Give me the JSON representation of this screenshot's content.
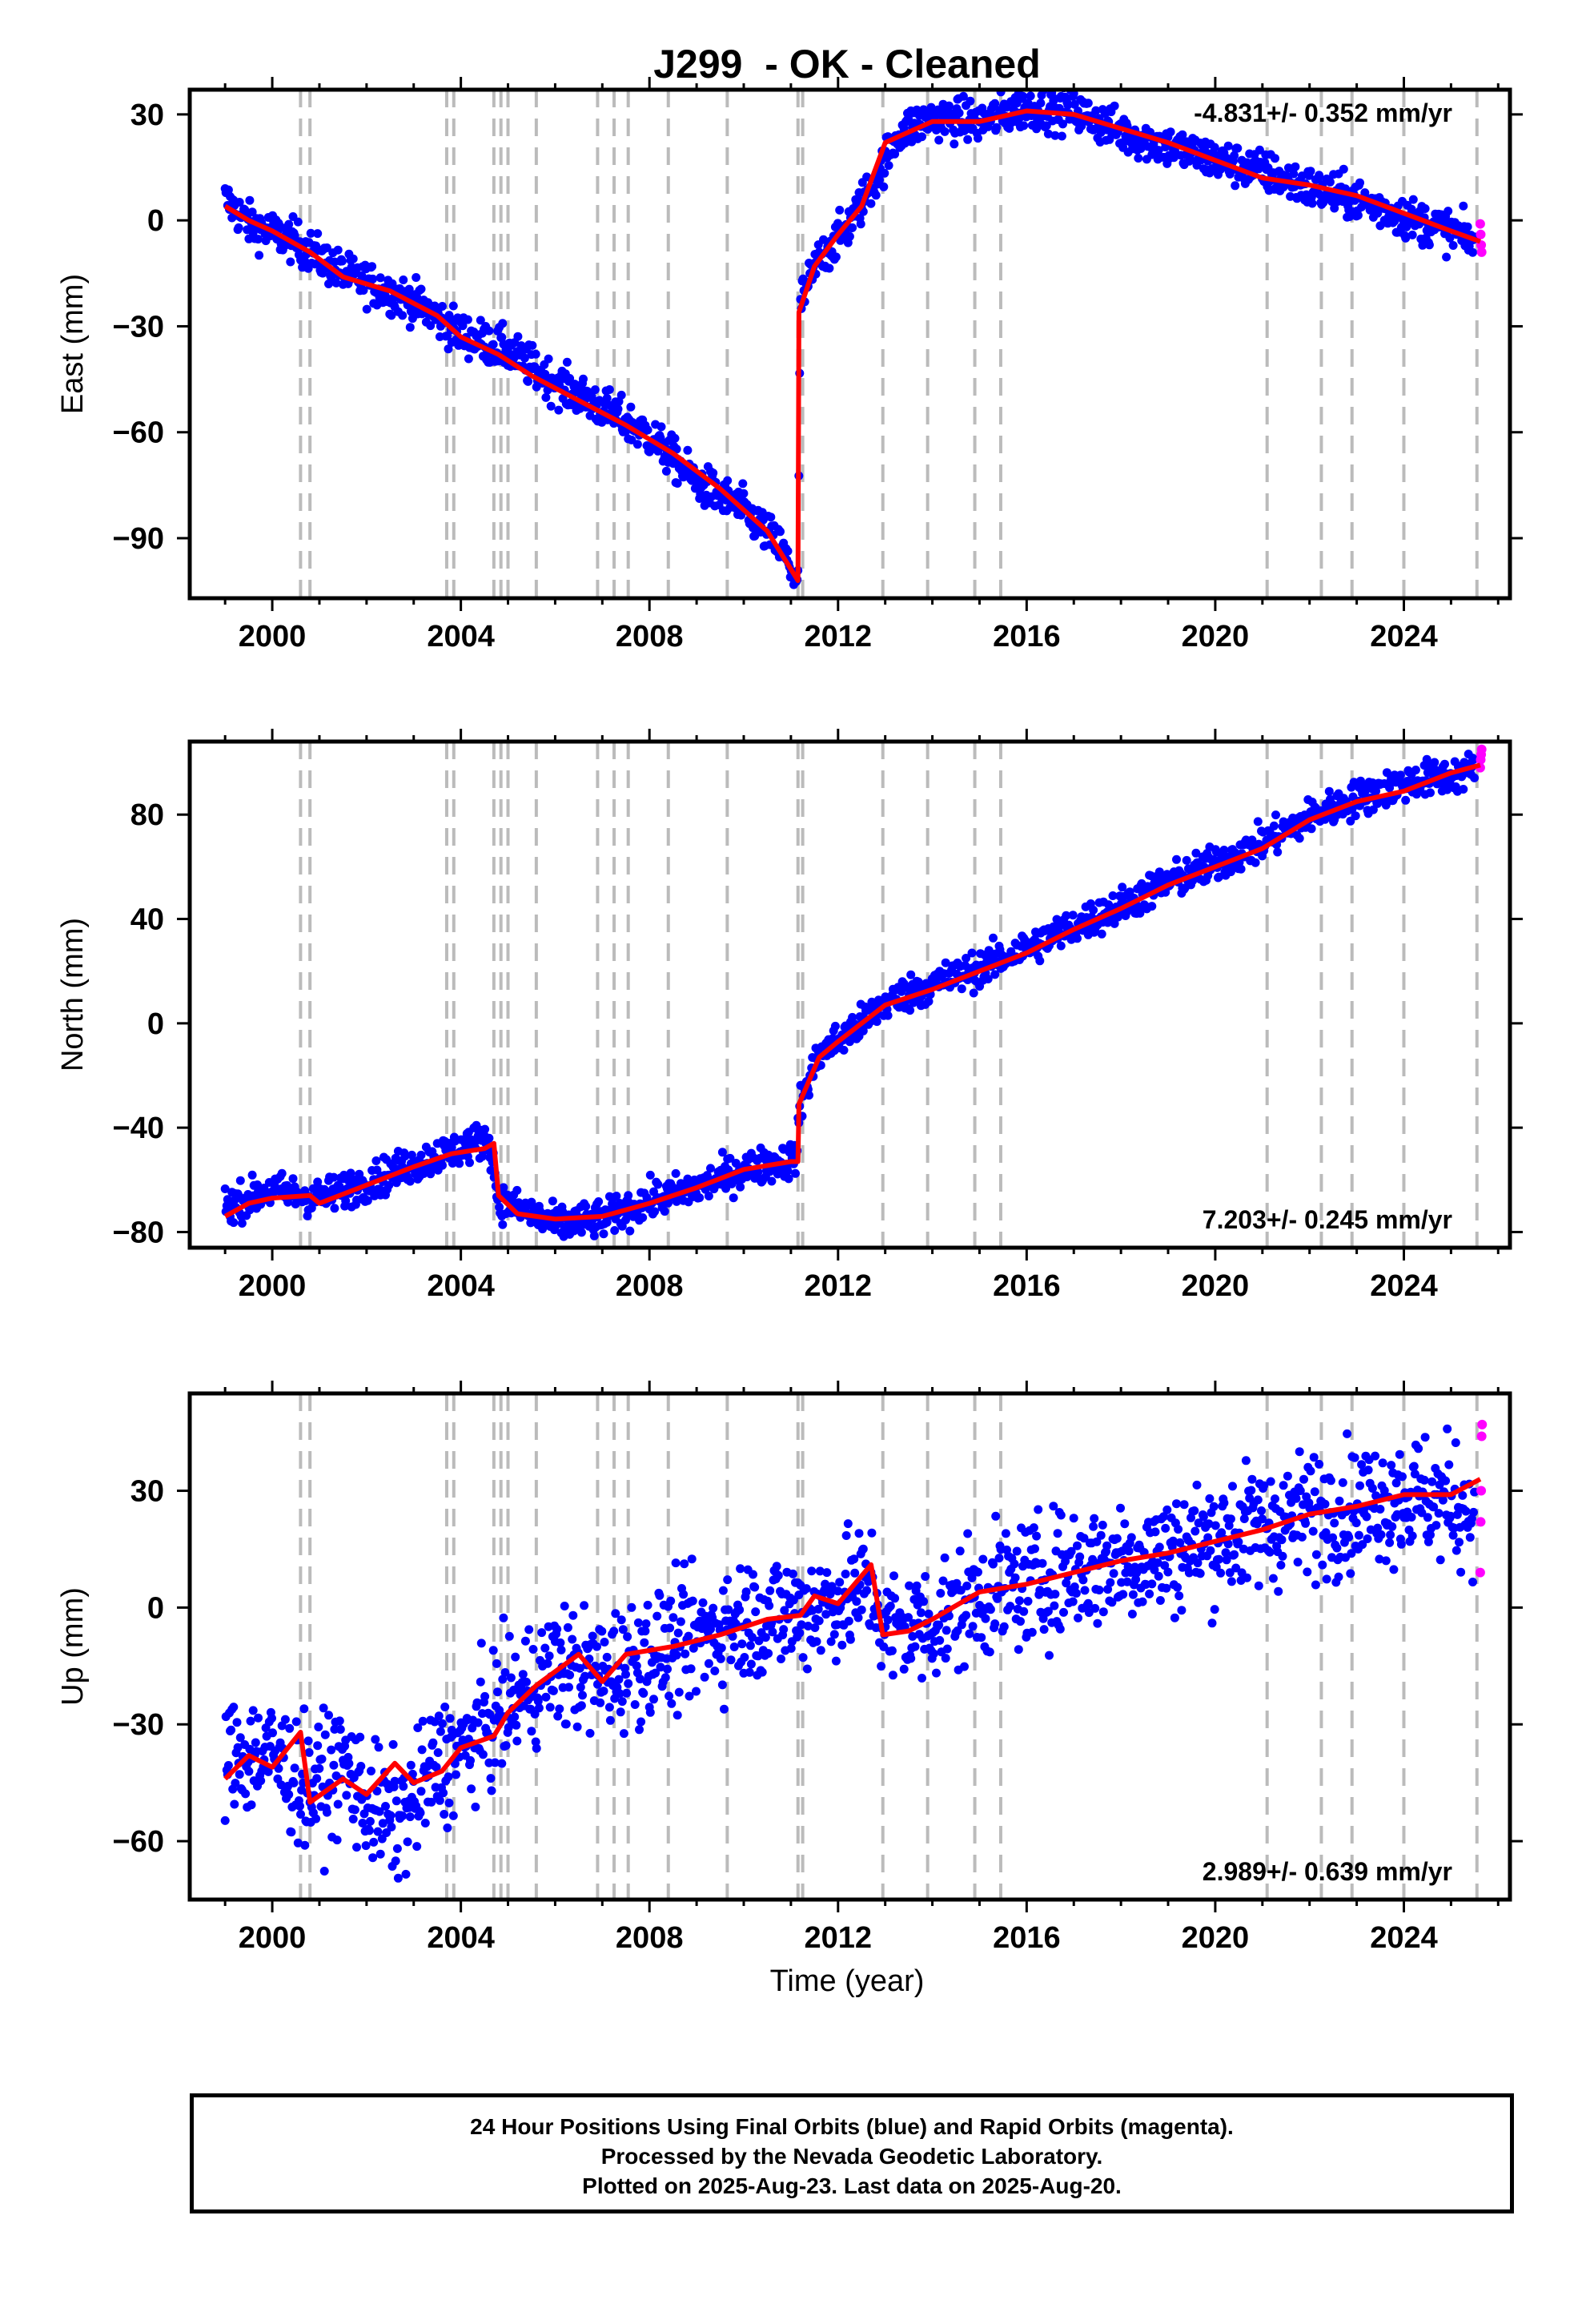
{
  "title": "J299  - OK - Cleaned",
  "xlabel": "Time (year)",
  "footer": {
    "line1": "24 Hour Positions Using Final Orbits (blue) and Rapid Orbits (magenta).",
    "line2": "Processed by the Nevada Geodetic Laboratory.",
    "line3": "Plotted on 2025-Aug-23. Last data on 2025-Aug-20."
  },
  "colors": {
    "final_orbits": "#0000ff",
    "rapid_orbits": "#ff00ff",
    "model": "#ff0000",
    "event_lines": "#bbbbbb"
  },
  "chart_data": [
    {
      "type": "scatter",
      "panel": "east",
      "ylabel": "East (mm)",
      "rate_label": "-4.831+/- 0.352 mm/yr",
      "rate_position": "top-right",
      "xlim": [
        1998.25,
        2026.25
      ],
      "ylim": [
        -107,
        37
      ],
      "xticks": [
        2000,
        2004,
        2008,
        2012,
        2016,
        2020,
        2024
      ],
      "yticks": [
        30,
        0,
        -30,
        -60,
        -90
      ],
      "ytick_labels": [
        "30",
        "0",
        "−30",
        "−60",
        "−90"
      ],
      "events": [
        2000.6,
        2000.8,
        2003.7,
        2003.85,
        2004.7,
        2004.85,
        2005.0,
        2005.6,
        2006.9,
        2007.25,
        2007.55,
        2008.4,
        2009.65,
        2011.15,
        2011.25,
        2012.95,
        2013.9,
        2014.9,
        2015.45,
        2021.1,
        2022.25,
        2022.9,
        2024.0,
        2025.55
      ],
      "model": [
        [
          1999.0,
          4
        ],
        [
          1999.5,
          0
        ],
        [
          2000.0,
          -3
        ],
        [
          2000.8,
          -9
        ],
        [
          2001.5,
          -16
        ],
        [
          2002.5,
          -20
        ],
        [
          2003.5,
          -27
        ],
        [
          2004.0,
          -33
        ],
        [
          2004.8,
          -38
        ],
        [
          2005.5,
          -44
        ],
        [
          2006.5,
          -51
        ],
        [
          2007.5,
          -58
        ],
        [
          2008.5,
          -66
        ],
        [
          2009.5,
          -76
        ],
        [
          2010.5,
          -88
        ],
        [
          2011.15,
          -102
        ],
        [
          2011.17,
          -26
        ],
        [
          2011.5,
          -13
        ],
        [
          2012.0,
          -4
        ],
        [
          2012.5,
          4
        ],
        [
          2013.0,
          22
        ],
        [
          2013.5,
          25
        ],
        [
          2014.0,
          28
        ],
        [
          2015.0,
          28
        ],
        [
          2016.0,
          31
        ],
        [
          2017.0,
          30
        ],
        [
          2018.0,
          26
        ],
        [
          2019.0,
          22
        ],
        [
          2020.0,
          17
        ],
        [
          2021.0,
          12
        ],
        [
          2022.0,
          10
        ],
        [
          2023.0,
          7
        ],
        [
          2024.0,
          2
        ],
        [
          2025.0,
          -3
        ],
        [
          2025.62,
          -6
        ]
      ],
      "final_orbits_series": [
        [
          1999.0,
          6
        ],
        [
          1999.5,
          -1
        ],
        [
          2000.5,
          -6
        ],
        [
          2001.5,
          -15
        ],
        [
          2003.0,
          -23
        ],
        [
          2004.0,
          -32
        ],
        [
          2005.0,
          -37
        ],
        [
          2006.0,
          -46
        ],
        [
          2007.0,
          -53
        ],
        [
          2008.0,
          -61
        ],
        [
          2009.0,
          -74
        ],
        [
          2010.0,
          -82
        ],
        [
          2010.8,
          -93
        ],
        [
          2011.15,
          -103
        ],
        [
          2011.2,
          -23
        ],
        [
          2011.6,
          -11
        ],
        [
          2012.2,
          -2
        ],
        [
          2012.8,
          12
        ],
        [
          2013.3,
          25
        ],
        [
          2014.0,
          29
        ],
        [
          2015.0,
          28
        ],
        [
          2016.0,
          32
        ],
        [
          2017.0,
          31
        ],
        [
          2018.0,
          25
        ],
        [
          2019.0,
          21
        ],
        [
          2020.0,
          17
        ],
        [
          2021.0,
          14
        ],
        [
          2022.0,
          9
        ],
        [
          2023.0,
          6
        ],
        [
          2024.0,
          1
        ],
        [
          2025.0,
          -3
        ],
        [
          2025.5,
          -6
        ]
      ],
      "rapid_orbits_series": [
        [
          2025.62,
          -1
        ],
        [
          2025.63,
          -4
        ],
        [
          2025.64,
          -7
        ],
        [
          2025.65,
          -9
        ]
      ],
      "scatter_spread": 3
    },
    {
      "type": "scatter",
      "panel": "north",
      "ylabel": "North (mm)",
      "rate_label": "7.203+/- 0.245 mm/yr",
      "rate_position": "bottom-right",
      "xlim": [
        1998.25,
        2026.25
      ],
      "ylim": [
        -86,
        108
      ],
      "xticks": [
        2000,
        2004,
        2008,
        2012,
        2016,
        2020,
        2024
      ],
      "yticks": [
        80,
        40,
        0,
        -40,
        -80
      ],
      "ytick_labels": [
        "80",
        "40",
        "0",
        "−40",
        "−80"
      ],
      "events": [
        2000.6,
        2000.8,
        2003.7,
        2003.85,
        2004.7,
        2004.85,
        2005.0,
        2005.6,
        2006.9,
        2007.25,
        2007.55,
        2008.4,
        2009.65,
        2011.15,
        2011.25,
        2012.95,
        2013.9,
        2014.9,
        2015.45,
        2021.1,
        2022.25,
        2022.9,
        2024.0,
        2025.55
      ],
      "model": [
        [
          1999.0,
          -74
        ],
        [
          1999.5,
          -69
        ],
        [
          2000.0,
          -67
        ],
        [
          2000.8,
          -66
        ],
        [
          2001.0,
          -69
        ],
        [
          2002.0,
          -62
        ],
        [
          2003.0,
          -55
        ],
        [
          2003.8,
          -50
        ],
        [
          2004.5,
          -48
        ],
        [
          2004.7,
          -46
        ],
        [
          2004.8,
          -66
        ],
        [
          2005.2,
          -73
        ],
        [
          2006.0,
          -75
        ],
        [
          2007.0,
          -74
        ],
        [
          2008.0,
          -69
        ],
        [
          2009.0,
          -63
        ],
        [
          2010.0,
          -56
        ],
        [
          2011.0,
          -53
        ],
        [
          2011.15,
          -53
        ],
        [
          2011.17,
          -31
        ],
        [
          2011.6,
          -13
        ],
        [
          2012.0,
          -7
        ],
        [
          2013.0,
          7
        ],
        [
          2014.0,
          13
        ],
        [
          2015.0,
          20
        ],
        [
          2016.0,
          27
        ],
        [
          2017.0,
          36
        ],
        [
          2018.0,
          44
        ],
        [
          2019.0,
          53
        ],
        [
          2020.0,
          60
        ],
        [
          2021.0,
          67
        ],
        [
          2022.0,
          78
        ],
        [
          2023.0,
          85
        ],
        [
          2024.0,
          89
        ],
        [
          2025.0,
          96
        ],
        [
          2025.62,
          99
        ]
      ],
      "final_orbits_series": [
        [
          1999.0,
          -70
        ],
        [
          2000.0,
          -64
        ],
        [
          2001.0,
          -67
        ],
        [
          2002.0,
          -61
        ],
        [
          2003.0,
          -54
        ],
        [
          2003.8,
          -49
        ],
        [
          2004.6,
          -44
        ],
        [
          2004.8,
          -68
        ],
        [
          2006.0,
          -77
        ],
        [
          2007.0,
          -75
        ],
        [
          2008.0,
          -68
        ],
        [
          2009.0,
          -63
        ],
        [
          2010.0,
          -56
        ],
        [
          2011.1,
          -52
        ],
        [
          2011.2,
          -30
        ],
        [
          2011.6,
          -12
        ],
        [
          2012.5,
          0
        ],
        [
          2013.0,
          8
        ],
        [
          2014.0,
          15
        ],
        [
          2015.0,
          21
        ],
        [
          2016.0,
          29
        ],
        [
          2017.0,
          37
        ],
        [
          2018.0,
          45
        ],
        [
          2019.0,
          54
        ],
        [
          2020.0,
          61
        ],
        [
          2021.0,
          69
        ],
        [
          2022.0,
          79
        ],
        [
          2023.0,
          86
        ],
        [
          2024.0,
          92
        ],
        [
          2025.0,
          95
        ],
        [
          2025.5,
          97
        ]
      ],
      "rapid_orbits_series": [
        [
          2025.62,
          98
        ],
        [
          2025.63,
          101
        ],
        [
          2025.64,
          103
        ],
        [
          2025.65,
          105
        ]
      ],
      "scatter_spread": 3.5
    },
    {
      "type": "scatter",
      "panel": "up",
      "ylabel": "Up (mm)",
      "rate_label": "2.989+/- 0.639 mm/yr",
      "rate_position": "bottom-right",
      "xlim": [
        1998.25,
        2026.25
      ],
      "ylim": [
        -75,
        55
      ],
      "xticks": [
        2000,
        2004,
        2008,
        2012,
        2016,
        2020,
        2024
      ],
      "yticks": [
        30,
        0,
        -30,
        -60
      ],
      "ytick_labels": [
        "30",
        "0",
        "−30",
        "−60"
      ],
      "events": [
        2000.6,
        2000.8,
        2003.7,
        2003.85,
        2004.7,
        2004.85,
        2005.0,
        2005.6,
        2006.9,
        2007.25,
        2007.55,
        2008.4,
        2009.65,
        2011.15,
        2011.25,
        2012.95,
        2013.9,
        2014.9,
        2015.45,
        2021.1,
        2022.25,
        2022.9,
        2024.0,
        2025.55
      ],
      "model": [
        [
          1999.0,
          -44
        ],
        [
          1999.5,
          -38
        ],
        [
          2000.0,
          -41
        ],
        [
          2000.6,
          -32
        ],
        [
          2000.8,
          -50
        ],
        [
          2001.5,
          -44
        ],
        [
          2002.0,
          -48
        ],
        [
          2002.6,
          -40
        ],
        [
          2003.0,
          -45
        ],
        [
          2003.6,
          -42
        ],
        [
          2004.0,
          -36
        ],
        [
          2004.7,
          -33
        ],
        [
          2005.0,
          -27
        ],
        [
          2005.6,
          -20
        ],
        [
          2006.5,
          -12
        ],
        [
          2007.0,
          -19
        ],
        [
          2007.5,
          -12
        ],
        [
          2008.5,
          -10
        ],
        [
          2009.5,
          -7
        ],
        [
          2010.5,
          -3
        ],
        [
          2011.2,
          -2
        ],
        [
          2011.5,
          3
        ],
        [
          2012.0,
          1
        ],
        [
          2012.7,
          11
        ],
        [
          2012.95,
          -7
        ],
        [
          2013.5,
          -6
        ],
        [
          2014.0,
          -3
        ],
        [
          2015.0,
          4
        ],
        [
          2016.0,
          6
        ],
        [
          2017.0,
          9
        ],
        [
          2018.0,
          12
        ],
        [
          2019.0,
          14
        ],
        [
          2020.0,
          17
        ],
        [
          2021.0,
          20
        ],
        [
          2022.0,
          24
        ],
        [
          2023.0,
          26
        ],
        [
          2024.0,
          29
        ],
        [
          2025.0,
          29
        ],
        [
          2025.62,
          33
        ]
      ],
      "final_orbits_series": [
        [
          1999.0,
          -38
        ],
        [
          2000.0,
          -38
        ],
        [
          2000.8,
          -47
        ],
        [
          2001.5,
          -40
        ],
        [
          2002.0,
          -50
        ],
        [
          2002.6,
          -55
        ],
        [
          2003.0,
          -50
        ],
        [
          2003.5,
          -40
        ],
        [
          2004.0,
          -37
        ],
        [
          2005.0,
          -25
        ],
        [
          2006.0,
          -15
        ],
        [
          2007.0,
          -17
        ],
        [
          2008.0,
          -12
        ],
        [
          2009.0,
          -8
        ],
        [
          2010.0,
          -3
        ],
        [
          2011.2,
          -1
        ],
        [
          2012.0,
          2
        ],
        [
          2012.7,
          6
        ],
        [
          2013.0,
          -6
        ],
        [
          2014.0,
          -4
        ],
        [
          2015.0,
          3
        ],
        [
          2016.0,
          6
        ],
        [
          2017.0,
          10
        ],
        [
          2018.0,
          12
        ],
        [
          2019.0,
          14
        ],
        [
          2020.0,
          18
        ],
        [
          2021.0,
          21
        ],
        [
          2022.0,
          24
        ],
        [
          2023.0,
          26
        ],
        [
          2024.0,
          29
        ],
        [
          2025.0,
          27
        ],
        [
          2025.5,
          25
        ]
      ],
      "rapid_orbits_series": [
        [
          2025.62,
          9
        ],
        [
          2025.63,
          22
        ],
        [
          2025.64,
          30
        ],
        [
          2025.65,
          44
        ],
        [
          2025.66,
          47
        ]
      ],
      "scatter_spread": 8
    }
  ]
}
